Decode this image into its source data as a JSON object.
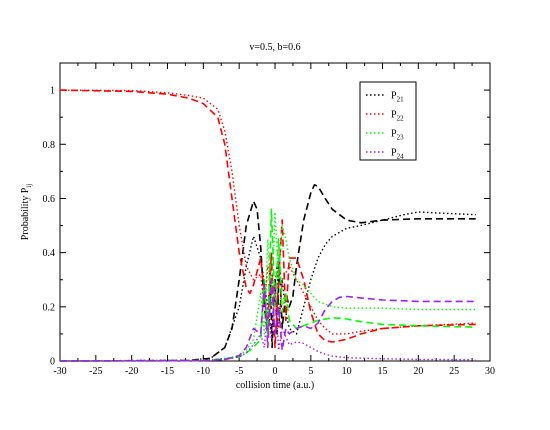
{
  "chart_data": {
    "type": "line",
    "title": "v=0.5, b=0.6",
    "xlabel": "collision time (a.u.)",
    "ylabel": "Probability P",
    "ylabel_sub": "ij",
    "xlim": [
      -30,
      30
    ],
    "ylim": [
      0,
      1.1
    ],
    "x_ticks": [
      {
        "value": -30,
        "label": "-30"
      },
      {
        "value": -25,
        "label": "-25"
      },
      {
        "value": -20,
        "label": "-20"
      },
      {
        "value": -15,
        "label": "-15"
      },
      {
        "value": -10,
        "label": "-10"
      },
      {
        "value": -5,
        "label": "-5"
      },
      {
        "value": 0,
        "label": "0"
      },
      {
        "value": 5,
        "label": "5"
      },
      {
        "value": 10,
        "label": "10"
      },
      {
        "value": 15,
        "label": "15"
      },
      {
        "value": 20,
        "label": "20"
      },
      {
        "value": 25,
        "label": "25"
      },
      {
        "value": 30,
        "label": "30"
      }
    ],
    "y_ticks": [
      {
        "value": 0,
        "label": "0"
      },
      {
        "value": 0.2,
        "label": "0.2"
      },
      {
        "value": 0.4,
        "label": "0.4"
      },
      {
        "value": 0.6,
        "label": "0.6"
      },
      {
        "value": 0.8,
        "label": "0.8"
      },
      {
        "value": 1,
        "label": "1"
      }
    ],
    "grid": false,
    "legend_position": "top-right",
    "legend": [
      {
        "label": "P",
        "sub": "21",
        "color": "#000000"
      },
      {
        "label": "P",
        "sub": "22",
        "color": "#ff0000"
      },
      {
        "label": "P",
        "sub": "23",
        "color": "#00ff00"
      },
      {
        "label": "P",
        "sub": "24",
        "color": "#a020f0"
      }
    ],
    "series": [
      {
        "name": "P21",
        "color": "#000000",
        "style": "dotted",
        "points": [
          [
            -30,
            0
          ],
          [
            -12,
            0.003
          ],
          [
            -9,
            0.01
          ],
          [
            -7,
            0.05
          ],
          [
            -5,
            0.2
          ],
          [
            -4,
            0.35
          ],
          [
            -3,
            0.46
          ],
          [
            -2,
            0.38
          ],
          [
            -1,
            0.2
          ],
          [
            -0.5,
            0.1
          ],
          [
            0,
            0.28
          ],
          [
            0.3,
            0.35
          ],
          [
            0.6,
            0.15
          ],
          [
            1,
            0.3
          ],
          [
            1.5,
            0.18
          ],
          [
            2,
            0.12
          ],
          [
            3,
            0.1
          ],
          [
            4,
            0.2
          ],
          [
            5,
            0.3
          ],
          [
            6,
            0.38
          ],
          [
            7,
            0.43
          ],
          [
            8,
            0.46
          ],
          [
            10,
            0.49
          ],
          [
            12,
            0.5
          ],
          [
            15,
            0.52
          ],
          [
            18,
            0.54
          ],
          [
            20,
            0.55
          ],
          [
            24,
            0.545
          ],
          [
            28,
            0.54
          ]
        ]
      },
      {
        "name": "P21",
        "color": "#000000",
        "style": "dashed",
        "points": [
          [
            -30,
            0
          ],
          [
            -12,
            0.002
          ],
          [
            -9,
            0.01
          ],
          [
            -7,
            0.05
          ],
          [
            -6,
            0.12
          ],
          [
            -5,
            0.3
          ],
          [
            -4,
            0.5
          ],
          [
            -3,
            0.59
          ],
          [
            -2.5,
            0.56
          ],
          [
            -2,
            0.42
          ],
          [
            -1.5,
            0.2
          ],
          [
            -1,
            0.1
          ],
          [
            -0.7,
            0.36
          ],
          [
            -0.4,
            0.05
          ],
          [
            0,
            0.3
          ],
          [
            0.3,
            0.1
          ],
          [
            0.6,
            0.38
          ],
          [
            1,
            0.12
          ],
          [
            1.5,
            0.25
          ],
          [
            2,
            0.2
          ],
          [
            2.5,
            0.24
          ],
          [
            3,
            0.35
          ],
          [
            4,
            0.52
          ],
          [
            5,
            0.62
          ],
          [
            5.5,
            0.65
          ],
          [
            6,
            0.645
          ],
          [
            7,
            0.6
          ],
          [
            8,
            0.56
          ],
          [
            10,
            0.52
          ],
          [
            12,
            0.51
          ],
          [
            15,
            0.52
          ],
          [
            20,
            0.525
          ],
          [
            28,
            0.525
          ]
        ]
      },
      {
        "name": "P22",
        "color": "#ff0000",
        "style": "dotted",
        "points": [
          [
            -30,
            1
          ],
          [
            -20,
            0.998
          ],
          [
            -15,
            0.99
          ],
          [
            -12,
            0.98
          ],
          [
            -10,
            0.97
          ],
          [
            -8,
            0.93
          ],
          [
            -7,
            0.85
          ],
          [
            -6,
            0.7
          ],
          [
            -5,
            0.5
          ],
          [
            -4,
            0.35
          ],
          [
            -3,
            0.3
          ],
          [
            -2,
            0.32
          ],
          [
            -1.5,
            0.2
          ],
          [
            -1,
            0.35
          ],
          [
            0,
            0.25
          ],
          [
            0.5,
            0.12
          ],
          [
            1,
            0.3
          ],
          [
            2,
            0.35
          ],
          [
            3,
            0.3
          ],
          [
            4,
            0.25
          ],
          [
            5,
            0.2
          ],
          [
            6,
            0.15
          ],
          [
            7,
            0.12
          ],
          [
            8,
            0.1
          ],
          [
            10,
            0.1
          ],
          [
            12,
            0.11
          ],
          [
            15,
            0.12
          ],
          [
            20,
            0.13
          ],
          [
            28,
            0.14
          ]
        ]
      },
      {
        "name": "P22",
        "color": "#ff0000",
        "style": "dashed",
        "points": [
          [
            -30,
            1
          ],
          [
            -20,
            0.995
          ],
          [
            -15,
            0.985
          ],
          [
            -12,
            0.97
          ],
          [
            -10,
            0.95
          ],
          [
            -8,
            0.9
          ],
          [
            -7,
            0.8
          ],
          [
            -6,
            0.6
          ],
          [
            -5,
            0.4
          ],
          [
            -4,
            0.27
          ],
          [
            -3.5,
            0.25
          ],
          [
            -3,
            0.28
          ],
          [
            -2,
            0.38
          ],
          [
            -1.5,
            0.25
          ],
          [
            -1,
            0.12
          ],
          [
            -0.5,
            0.4
          ],
          [
            0,
            0.05
          ],
          [
            0.5,
            0.3
          ],
          [
            1,
            0.52
          ],
          [
            1.5,
            0.15
          ],
          [
            2,
            0.38
          ],
          [
            3,
            0.38
          ],
          [
            4,
            0.3
          ],
          [
            5,
            0.18
          ],
          [
            6,
            0.1
          ],
          [
            7,
            0.075
          ],
          [
            8,
            0.07
          ],
          [
            10,
            0.08
          ],
          [
            12,
            0.1
          ],
          [
            15,
            0.12
          ],
          [
            20,
            0.13
          ],
          [
            28,
            0.135
          ]
        ]
      },
      {
        "name": "P23",
        "color": "#00ff00",
        "style": "dotted",
        "points": [
          [
            -30,
            0
          ],
          [
            -12,
            0.002
          ],
          [
            -9,
            0.005
          ],
          [
            -7,
            0.01
          ],
          [
            -5,
            0.02
          ],
          [
            -4,
            0.04
          ],
          [
            -3,
            0.08
          ],
          [
            -2,
            0.25
          ],
          [
            -1.5,
            0.1
          ],
          [
            -1,
            0.45
          ],
          [
            -0.5,
            0.2
          ],
          [
            0,
            0.55
          ],
          [
            0.5,
            0.3
          ],
          [
            1,
            0.5
          ],
          [
            1.5,
            0.45
          ],
          [
            2,
            0.38
          ],
          [
            3,
            0.3
          ],
          [
            4,
            0.28
          ],
          [
            5,
            0.25
          ],
          [
            6,
            0.22
          ],
          [
            7,
            0.21
          ],
          [
            8,
            0.2
          ],
          [
            10,
            0.195
          ],
          [
            15,
            0.195
          ],
          [
            20,
            0.19
          ],
          [
            28,
            0.19
          ]
        ]
      },
      {
        "name": "P23",
        "color": "#00ff00",
        "style": "dashed",
        "points": [
          [
            -30,
            0
          ],
          [
            -12,
            0.001
          ],
          [
            -9,
            0.003
          ],
          [
            -7,
            0.008
          ],
          [
            -5,
            0.015
          ],
          [
            -4,
            0.03
          ],
          [
            -3,
            0.05
          ],
          [
            -2,
            0.08
          ],
          [
            -1.5,
            0.3
          ],
          [
            -1,
            0.1
          ],
          [
            -0.5,
            0.56
          ],
          [
            0,
            0.2
          ],
          [
            0.5,
            0.45
          ],
          [
            1,
            0.18
          ],
          [
            1.5,
            0.25
          ],
          [
            2,
            0.15
          ],
          [
            3,
            0.12
          ],
          [
            4,
            0.13
          ],
          [
            5,
            0.14
          ],
          [
            6,
            0.15
          ],
          [
            8,
            0.16
          ],
          [
            10,
            0.155
          ],
          [
            12,
            0.145
          ],
          [
            15,
            0.135
          ],
          [
            20,
            0.13
          ],
          [
            28,
            0.125
          ]
        ]
      },
      {
        "name": "P24",
        "color": "#a020f0",
        "style": "dotted",
        "points": [
          [
            -30,
            0
          ],
          [
            -12,
            0.001
          ],
          [
            -9,
            0.003
          ],
          [
            -7,
            0.006
          ],
          [
            -5,
            0.015
          ],
          [
            -4,
            0.03
          ],
          [
            -3,
            0.06
          ],
          [
            -2,
            0.1
          ],
          [
            -1.5,
            0.05
          ],
          [
            -1,
            0.2
          ],
          [
            -0.5,
            0.08
          ],
          [
            0,
            0.28
          ],
          [
            0.5,
            0.04
          ],
          [
            1,
            0.12
          ],
          [
            2,
            0.06
          ],
          [
            3,
            0.07
          ],
          [
            4,
            0.065
          ],
          [
            5,
            0.05
          ],
          [
            6,
            0.035
          ],
          [
            7,
            0.025
          ],
          [
            8,
            0.018
          ],
          [
            10,
            0.012
          ],
          [
            15,
            0.008
          ],
          [
            20,
            0.006
          ],
          [
            28,
            0.005
          ]
        ]
      },
      {
        "name": "P24",
        "color": "#a020f0",
        "style": "dashed",
        "points": [
          [
            -30,
            0
          ],
          [
            -12,
            0.001
          ],
          [
            -9,
            0.003
          ],
          [
            -7,
            0.005
          ],
          [
            -5,
            0.02
          ],
          [
            -4,
            0.05
          ],
          [
            -3,
            0.12
          ],
          [
            -2,
            0.1
          ],
          [
            -1.5,
            0.28
          ],
          [
            -1,
            0.05
          ],
          [
            -0.5,
            0.3
          ],
          [
            0,
            0.1
          ],
          [
            0.5,
            0.2
          ],
          [
            1,
            0.04
          ],
          [
            1.5,
            0.12
          ],
          [
            2,
            0.1
          ],
          [
            3,
            0.12
          ],
          [
            4,
            0.13
          ],
          [
            5,
            0.12
          ],
          [
            6,
            0.14
          ],
          [
            7,
            0.19
          ],
          [
            8,
            0.22
          ],
          [
            9,
            0.235
          ],
          [
            10,
            0.238
          ],
          [
            12,
            0.233
          ],
          [
            15,
            0.225
          ],
          [
            20,
            0.22
          ],
          [
            28,
            0.22
          ]
        ]
      }
    ]
  }
}
